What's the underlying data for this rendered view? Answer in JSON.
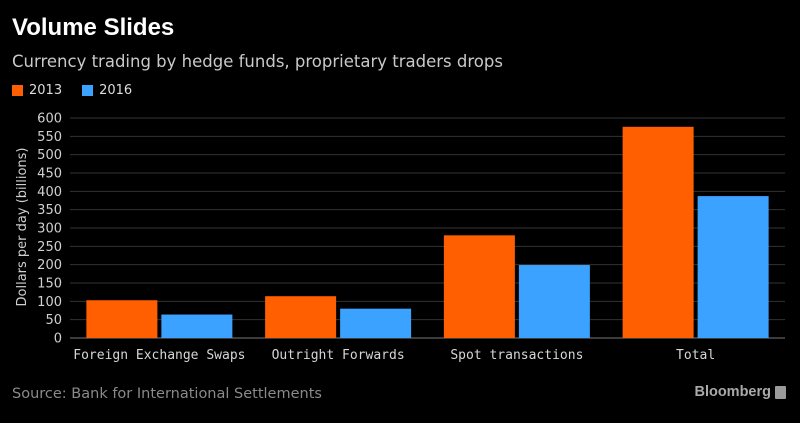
{
  "header": {
    "title": "Volume Slides",
    "subtitle": "Currency trading by hedge funds, proprietary traders drops"
  },
  "footer": {
    "source": "Source: Bank for International Settlements",
    "brand": "Bloomberg"
  },
  "colors": {
    "series_2013": "#ff5f00",
    "series_2016": "#3ba2ff",
    "background": "#000000",
    "grid": "#333333"
  },
  "chart_data": {
    "type": "bar",
    "categories": [
      "Foreign Exchange Swaps",
      "Outright Forwards",
      "Spot transactions",
      "Total"
    ],
    "series": [
      {
        "name": "2013",
        "values": [
          103,
          114,
          280,
          576
        ]
      },
      {
        "name": "2016",
        "values": [
          64,
          80,
          199,
          387
        ]
      }
    ],
    "ylabel": "Dollars per day (billions)",
    "ylim": [
      0,
      600
    ],
    "yticks": [
      0,
      50,
      100,
      150,
      200,
      250,
      300,
      350,
      400,
      450,
      500,
      550,
      600
    ],
    "grid": true,
    "legend_position": "top-left"
  }
}
